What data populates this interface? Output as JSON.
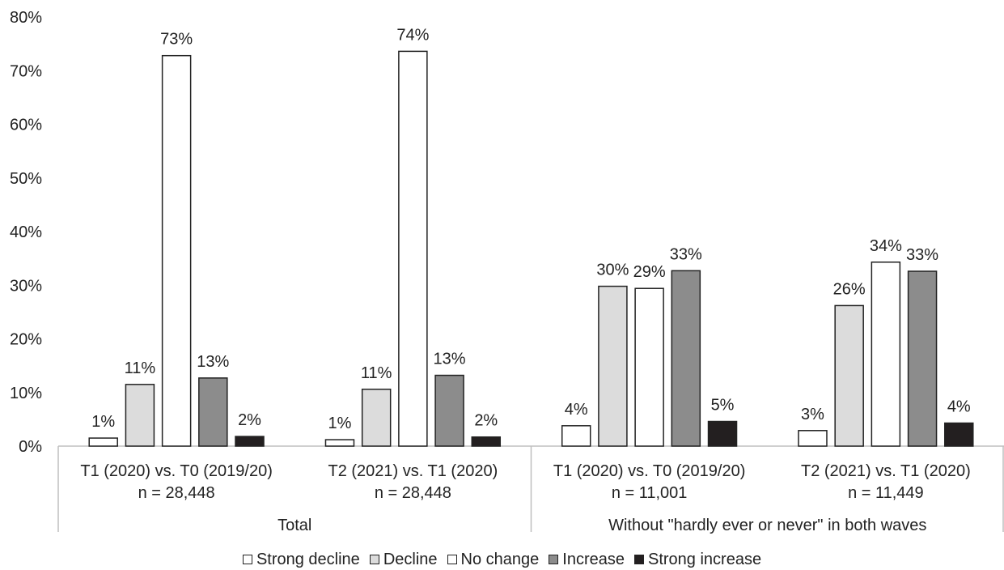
{
  "chart_data": {
    "type": "bar",
    "yaxis_ticks": [
      "0%",
      "10%",
      "20%",
      "30%",
      "40%",
      "50%",
      "60%",
      "70%",
      "80%"
    ],
    "ylim": [
      0,
      80
    ],
    "groups": [
      {
        "label": "T1 (2020) vs. T0 (2019/20)",
        "n": "n = 28,448",
        "values": [
          1.5,
          11.5,
          72.8,
          12.7,
          1.8
        ],
        "labels": [
          "1%",
          "11%",
          "73%",
          "13%",
          "2%"
        ]
      },
      {
        "label": "T2 (2021) vs. T1 (2020)",
        "n": "n = 28,448",
        "values": [
          1.2,
          10.6,
          73.6,
          13.2,
          1.7
        ],
        "labels": [
          "1%",
          "11%",
          "74%",
          "13%",
          "2%"
        ]
      },
      {
        "label": "T1 (2020) vs. T0 (2019/20)",
        "n": "n = 11,001",
        "values": [
          3.8,
          29.8,
          29.4,
          32.7,
          4.6
        ],
        "labels": [
          "4%",
          "30%",
          "29%",
          "33%",
          "5%"
        ]
      },
      {
        "label": "T2 (2021) vs. T1 (2020)",
        "n": "n = 11,449",
        "values": [
          2.9,
          26.2,
          34.3,
          32.6,
          4.3
        ],
        "labels": [
          "3%",
          "26%",
          "34%",
          "33%",
          "4%"
        ]
      }
    ],
    "supergroups": [
      {
        "label": "Total"
      },
      {
        "label": "Without \"hardly ever or never\" in both waves"
      }
    ],
    "series": [
      {
        "name": "Strong decline",
        "color": "#ffffff"
      },
      {
        "name": "Decline",
        "color": "#dcdcdc"
      },
      {
        "name": "No change",
        "color": "#ffffff"
      },
      {
        "name": "Increase",
        "color": "#8c8c8c"
      },
      {
        "name": "Strong increase",
        "color": "#231f20"
      }
    ],
    "legend_position": "bottom",
    "grid": false
  }
}
